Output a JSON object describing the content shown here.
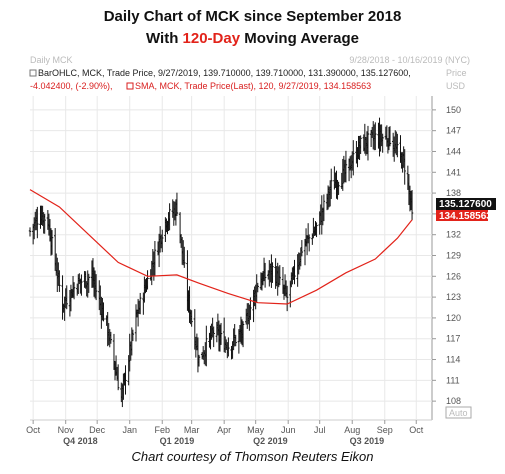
{
  "title": {
    "line1": "Daily Chart of MCK since September 2018",
    "line2_prefix": "With ",
    "line2_accent": "120-Day",
    "line2_suffix": " Moving Average"
  },
  "caption": "Chart courtesy of Thomson Reuters Eikon",
  "colors": {
    "price": "#111111",
    "sma": "#e2231a",
    "accent": "#e2231a",
    "last_badge": "#111111",
    "sma_badge": "#e2231a"
  },
  "chart_data": {
    "type": "ohlc",
    "panel_name": "Daily MCK",
    "date_range": "9/28/2018 - 10/16/2019 (NYC)",
    "y_axis_title": "Price",
    "y_unit": "USD",
    "scale_mode": "Auto",
    "ylim": [
      106,
      152
    ],
    "y_ticks": [
      108,
      111,
      114,
      117,
      120,
      123,
      126,
      129,
      132,
      135,
      138,
      141,
      144,
      147,
      150
    ],
    "x_month_ticks": [
      "Oct",
      "Nov",
      "Dec",
      "Jan",
      "Feb",
      "Mar",
      "Apr",
      "May",
      "Jun",
      "Jul",
      "Aug",
      "Sep",
      "Oct"
    ],
    "x_quarter_ticks": [
      "Q4 2018",
      "Q1 2019",
      "Q2 2019",
      "Q3 2019"
    ],
    "legend_ohlc": "BarOHLC, MCK, Trade Price, 9/27/2019, 139.710000, 139.710000, 131.390000, 135.127600,",
    "legend_change": "-4.042400, (-2.90%),",
    "legend_sma": "SMA, MCK, Trade Price(Last), 120, 9/27/2019, 134.158563",
    "last_price_label": "135.127600",
    "sma_value_label": "134.158563",
    "close_series_approx": [
      {
        "date": "2018-09-28",
        "close": 132.5
      },
      {
        "date": "2018-10-08",
        "close": 135.0
      },
      {
        "date": "2018-10-15",
        "close": 134.0
      },
      {
        "date": "2018-10-29",
        "close": 122.0
      },
      {
        "date": "2018-11-12",
        "close": 125.0
      },
      {
        "date": "2018-11-26",
        "close": 126.0
      },
      {
        "date": "2018-12-10",
        "close": 119.0
      },
      {
        "date": "2018-12-24",
        "close": 108.5
      },
      {
        "date": "2019-01-07",
        "close": 120.0
      },
      {
        "date": "2019-01-21",
        "close": 127.0
      },
      {
        "date": "2019-02-04",
        "close": 134.0
      },
      {
        "date": "2019-02-15",
        "close": 136.0
      },
      {
        "date": "2019-02-25",
        "close": 123.0
      },
      {
        "date": "2019-03-08",
        "close": 114.0
      },
      {
        "date": "2019-03-22",
        "close": 118.0
      },
      {
        "date": "2019-04-05",
        "close": 116.0
      },
      {
        "date": "2019-04-19",
        "close": 118.0
      },
      {
        "date": "2019-05-03",
        "close": 125.0
      },
      {
        "date": "2019-05-17",
        "close": 127.0
      },
      {
        "date": "2019-05-31",
        "close": 123.0
      },
      {
        "date": "2019-06-14",
        "close": 130.0
      },
      {
        "date": "2019-06-28",
        "close": 133.0
      },
      {
        "date": "2019-07-12",
        "close": 139.0
      },
      {
        "date": "2019-07-26",
        "close": 141.0
      },
      {
        "date": "2019-08-09",
        "close": 145.0
      },
      {
        "date": "2019-08-23",
        "close": 146.0
      },
      {
        "date": "2019-09-06",
        "close": 146.0
      },
      {
        "date": "2019-09-20",
        "close": 142.0
      },
      {
        "date": "2019-09-27",
        "close": 135.13
      }
    ],
    "sma_series_approx": [
      {
        "date": "2018-09-28",
        "value": 138.5
      },
      {
        "date": "2018-10-26",
        "value": 136.0
      },
      {
        "date": "2018-11-23",
        "value": 132.0
      },
      {
        "date": "2018-12-21",
        "value": 128.0
      },
      {
        "date": "2019-01-18",
        "value": 126.0
      },
      {
        "date": "2019-02-15",
        "value": 126.2
      },
      {
        "date": "2019-03-08",
        "value": 125.0
      },
      {
        "date": "2019-04-05",
        "value": 123.5
      },
      {
        "date": "2019-05-03",
        "value": 122.2
      },
      {
        "date": "2019-05-31",
        "value": 122.0
      },
      {
        "date": "2019-06-28",
        "value": 124.0
      },
      {
        "date": "2019-07-26",
        "value": 126.5
      },
      {
        "date": "2019-08-23",
        "value": 128.5
      },
      {
        "date": "2019-09-13",
        "value": 131.5
      },
      {
        "date": "2019-09-27",
        "value": 134.16
      }
    ]
  }
}
